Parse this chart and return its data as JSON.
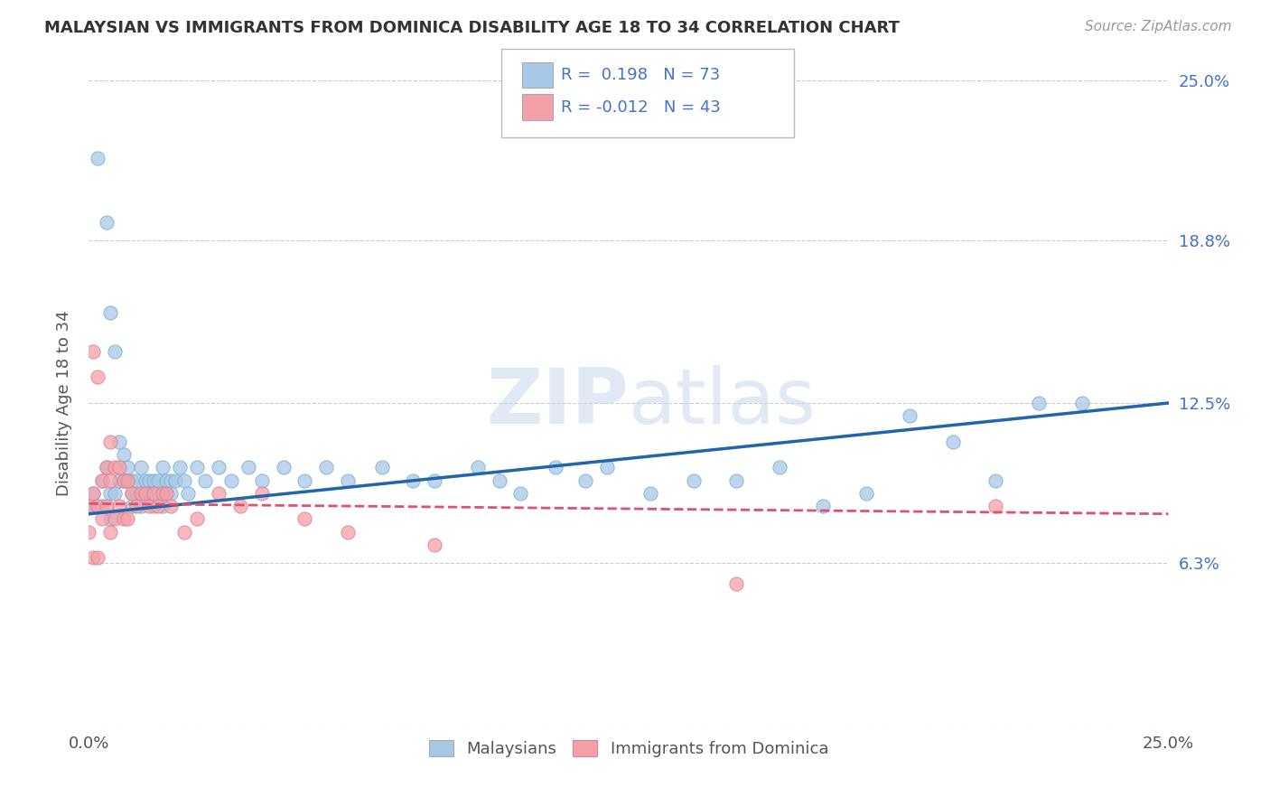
{
  "title": "MALAYSIAN VS IMMIGRANTS FROM DOMINICA DISABILITY AGE 18 TO 34 CORRELATION CHART",
  "source": "Source: ZipAtlas.com",
  "ylabel": "Disability Age 18 to 34",
  "xlim": [
    0.0,
    0.25
  ],
  "ylim": [
    0.0,
    0.25
  ],
  "yticks": [
    0.0,
    0.063,
    0.125,
    0.188,
    0.25
  ],
  "right_ytick_labels": [
    "25.0%",
    "18.8%",
    "12.5%",
    "6.3%"
  ],
  "right_ytick_values": [
    0.25,
    0.188,
    0.125,
    0.063
  ],
  "xtick_labels": [
    "0.0%",
    "25.0%"
  ],
  "legend_r1": "0.198",
  "legend_n1": "73",
  "legend_r2": "-0.012",
  "legend_n2": "43",
  "blue_color": "#a8c8e8",
  "pink_color": "#f4a0a8",
  "blue_line_color": "#2166ac",
  "pink_line_color": "#e05070",
  "watermark": "ZIPatlas",
  "malaysians_x": [
    0.001,
    0.001,
    0.002,
    0.003,
    0.003,
    0.004,
    0.004,
    0.005,
    0.005,
    0.005,
    0.006,
    0.006,
    0.007,
    0.007,
    0.008,
    0.008,
    0.009,
    0.009,
    0.01,
    0.01,
    0.01,
    0.011,
    0.011,
    0.012,
    0.012,
    0.013,
    0.013,
    0.014,
    0.014,
    0.015,
    0.015,
    0.016,
    0.016,
    0.017,
    0.017,
    0.018,
    0.018,
    0.019,
    0.019,
    0.02,
    0.021,
    0.022,
    0.023,
    0.025,
    0.027,
    0.03,
    0.033,
    0.037,
    0.04,
    0.045,
    0.05,
    0.055,
    0.06,
    0.068,
    0.075,
    0.08,
    0.09,
    0.095,
    0.1,
    0.108,
    0.115,
    0.12,
    0.13,
    0.14,
    0.15,
    0.16,
    0.17,
    0.18,
    0.19,
    0.2,
    0.21,
    0.22,
    0.23
  ],
  "malaysians_y": [
    0.085,
    0.09,
    0.22,
    0.095,
    0.085,
    0.195,
    0.1,
    0.09,
    0.08,
    0.16,
    0.09,
    0.145,
    0.095,
    0.11,
    0.095,
    0.105,
    0.095,
    0.1,
    0.095,
    0.09,
    0.085,
    0.095,
    0.09,
    0.1,
    0.085,
    0.095,
    0.09,
    0.095,
    0.09,
    0.095,
    0.085,
    0.095,
    0.09,
    0.1,
    0.085,
    0.095,
    0.09,
    0.095,
    0.09,
    0.095,
    0.1,
    0.095,
    0.09,
    0.1,
    0.095,
    0.1,
    0.095,
    0.1,
    0.095,
    0.1,
    0.095,
    0.1,
    0.095,
    0.1,
    0.095,
    0.095,
    0.1,
    0.095,
    0.09,
    0.1,
    0.095,
    0.1,
    0.09,
    0.095,
    0.095,
    0.1,
    0.085,
    0.09,
    0.12,
    0.11,
    0.095,
    0.125,
    0.125
  ],
  "dominica_x": [
    0.0,
    0.0,
    0.001,
    0.001,
    0.001,
    0.002,
    0.002,
    0.002,
    0.003,
    0.003,
    0.004,
    0.004,
    0.005,
    0.005,
    0.005,
    0.006,
    0.006,
    0.007,
    0.007,
    0.008,
    0.008,
    0.009,
    0.009,
    0.01,
    0.011,
    0.012,
    0.013,
    0.014,
    0.015,
    0.016,
    0.017,
    0.018,
    0.019,
    0.022,
    0.025,
    0.03,
    0.035,
    0.04,
    0.05,
    0.06,
    0.08,
    0.15,
    0.21
  ],
  "dominica_y": [
    0.085,
    0.075,
    0.145,
    0.09,
    0.065,
    0.135,
    0.085,
    0.065,
    0.095,
    0.08,
    0.1,
    0.085,
    0.11,
    0.095,
    0.075,
    0.1,
    0.08,
    0.1,
    0.085,
    0.095,
    0.08,
    0.095,
    0.08,
    0.09,
    0.085,
    0.09,
    0.09,
    0.085,
    0.09,
    0.085,
    0.09,
    0.09,
    0.085,
    0.075,
    0.08,
    0.09,
    0.085,
    0.09,
    0.08,
    0.075,
    0.07,
    0.055,
    0.085
  ]
}
